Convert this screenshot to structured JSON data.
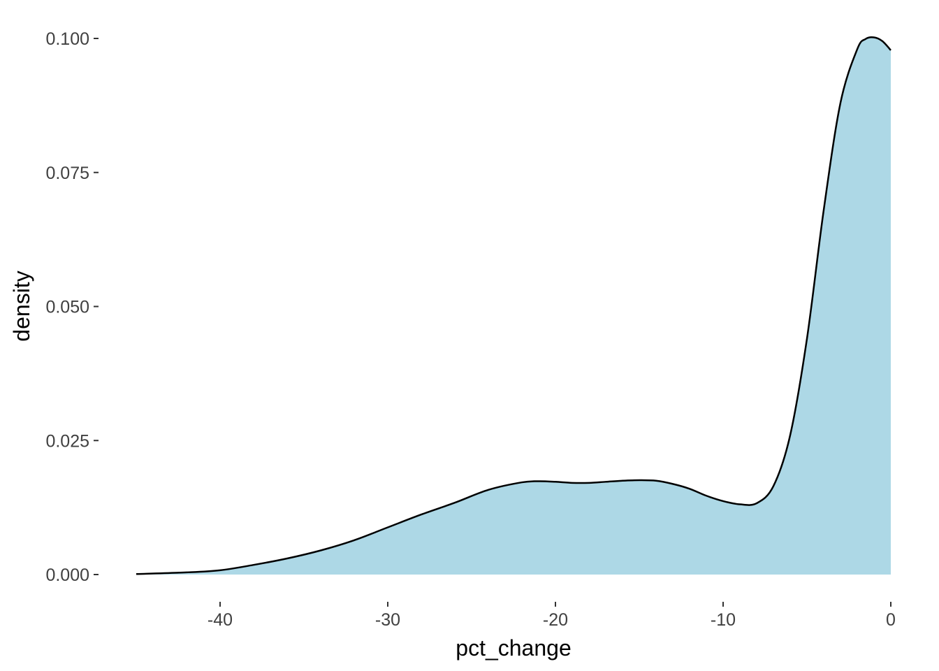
{
  "chart_data": {
    "type": "area",
    "subtype": "density",
    "title": "",
    "xlabel": "pct_change",
    "ylabel": "density",
    "xlim": [
      -45,
      0
    ],
    "ylim": [
      0,
      0.1
    ],
    "x_ticks": [
      -40,
      -30,
      -20,
      -10,
      0
    ],
    "x_tick_labels": [
      "-40",
      "-30",
      "-20",
      "-10",
      "0"
    ],
    "y_ticks": [
      0,
      0.025,
      0.05,
      0.075,
      0.1
    ],
    "y_tick_labels": [
      "0.000",
      "0.025",
      "0.050",
      "0.075",
      "0.100"
    ],
    "grid": false,
    "legend": "none",
    "fill_color": "#add8e6",
    "line_color": "#000000",
    "x": [
      -45,
      -42,
      -40,
      -38,
      -36,
      -34,
      -32,
      -30,
      -28,
      -26,
      -24,
      -22,
      -21,
      -20,
      -19,
      -18,
      -17,
      -16,
      -15,
      -14,
      -13,
      -12,
      -11,
      -10,
      -9,
      -8,
      -7,
      -6,
      -5,
      -4,
      -3,
      -2,
      -1.5,
      -1,
      -0.5,
      0
    ],
    "y": [
      0.0001,
      0.0004,
      0.0008,
      0.0018,
      0.003,
      0.0045,
      0.0064,
      0.0088,
      0.0112,
      0.0134,
      0.0158,
      0.0172,
      0.0174,
      0.0173,
      0.0171,
      0.0171,
      0.0173,
      0.0175,
      0.0176,
      0.0175,
      0.0169,
      0.016,
      0.0147,
      0.0137,
      0.0131,
      0.0133,
      0.0165,
      0.026,
      0.044,
      0.068,
      0.088,
      0.098,
      0.0999,
      0.1002,
      0.0995,
      0.0978
    ]
  }
}
